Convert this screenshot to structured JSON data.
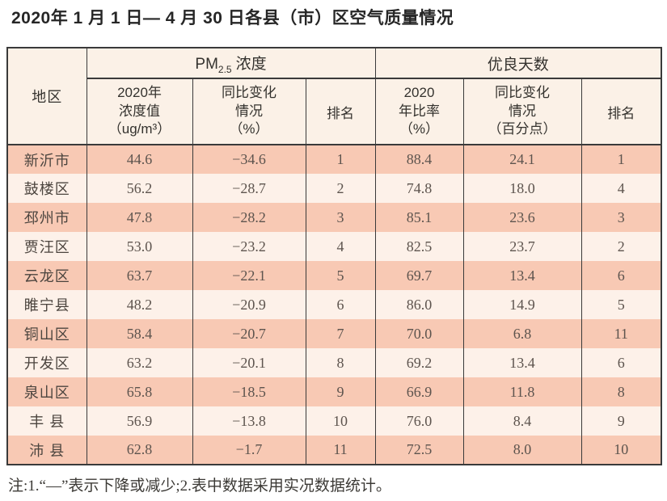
{
  "page": {
    "title": "2020年 1 月 1 日— 4 月 30 日各县（市）区空气质量情况",
    "footnote": "注:1.“—”表示下降或减少;2.表中数据采用实况数据统计。"
  },
  "colors": {
    "border": "#3a3a3a",
    "header_bg": "#fbf1e7",
    "row_odd_bg": "#f8c9b4",
    "row_even_bg": "#fdf1e9",
    "page_bg": "#ffffff"
  },
  "table": {
    "header": {
      "region": "地区",
      "pm_group": {
        "prefix": "PM",
        "sub": "2.5",
        "suffix": "浓度"
      },
      "good_days_group": "优良天数",
      "pm_value": {
        "line1": "2020年",
        "line2": "浓度值",
        "line3": "（ug/m³）"
      },
      "pm_change": {
        "line1": "同比变化",
        "line2": "情况",
        "line3": "（%）"
      },
      "pm_rank": "排名",
      "gd_ratio": {
        "line1": "2020",
        "line2": "年比率",
        "line3": "（%）"
      },
      "gd_change": {
        "line1": "同比变化",
        "line2": "情况",
        "line3": "（百分点）"
      },
      "gd_rank": "排名"
    },
    "rows": [
      {
        "region": "新沂市",
        "pm_value": "44.6",
        "pm_change": "−34.6",
        "pm_rank": "1",
        "gd_ratio": "88.4",
        "gd_change": "24.1",
        "gd_rank": "1"
      },
      {
        "region": "鼓楼区",
        "pm_value": "56.2",
        "pm_change": "−28.7",
        "pm_rank": "2",
        "gd_ratio": "74.8",
        "gd_change": "18.0",
        "gd_rank": "4"
      },
      {
        "region": "邳州市",
        "pm_value": "47.8",
        "pm_change": "−28.2",
        "pm_rank": "3",
        "gd_ratio": "85.1",
        "gd_change": "23.6",
        "gd_rank": "3"
      },
      {
        "region": "贾汪区",
        "pm_value": "53.0",
        "pm_change": "−23.2",
        "pm_rank": "4",
        "gd_ratio": "82.5",
        "gd_change": "23.7",
        "gd_rank": "2"
      },
      {
        "region": "云龙区",
        "pm_value": "63.7",
        "pm_change": "−22.1",
        "pm_rank": "5",
        "gd_ratio": "69.7",
        "gd_change": "13.4",
        "gd_rank": "6"
      },
      {
        "region": "睢宁县",
        "pm_value": "48.2",
        "pm_change": "−20.9",
        "pm_rank": "6",
        "gd_ratio": "86.0",
        "gd_change": "14.9",
        "gd_rank": "5"
      },
      {
        "region": "铜山区",
        "pm_value": "58.4",
        "pm_change": "−20.7",
        "pm_rank": "7",
        "gd_ratio": "70.0",
        "gd_change": "6.8",
        "gd_rank": "11"
      },
      {
        "region": "开发区",
        "pm_value": "63.2",
        "pm_change": "−20.1",
        "pm_rank": "8",
        "gd_ratio": "69.2",
        "gd_change": "13.4",
        "gd_rank": "6"
      },
      {
        "region": "泉山区",
        "pm_value": "65.8",
        "pm_change": "−18.5",
        "pm_rank": "9",
        "gd_ratio": "66.9",
        "gd_change": "11.8",
        "gd_rank": "8"
      },
      {
        "region": "丰 县",
        "pm_value": "56.9",
        "pm_change": "−13.8",
        "pm_rank": "10",
        "gd_ratio": "76.0",
        "gd_change": "8.4",
        "gd_rank": "9"
      },
      {
        "region": "沛 县",
        "pm_value": "62.8",
        "pm_change": "−1.7",
        "pm_rank": "11",
        "gd_ratio": "72.5",
        "gd_change": "8.0",
        "gd_rank": "10"
      }
    ]
  }
}
